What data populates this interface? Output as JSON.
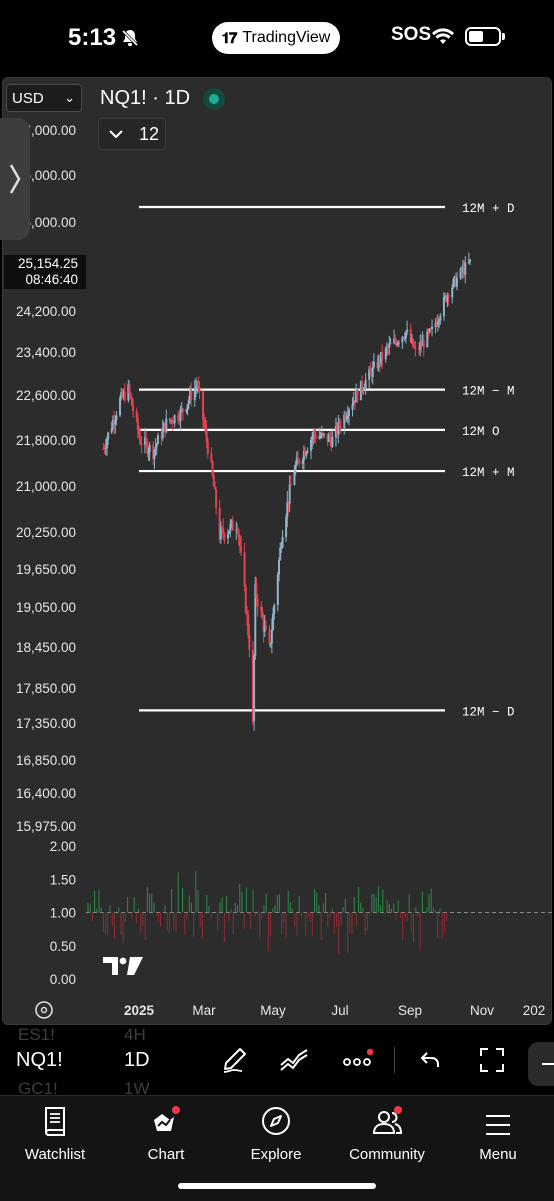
{
  "status_bar": {
    "time": "5:13",
    "app_pill": "TradingView",
    "carrier": "SOS"
  },
  "chart_header": {
    "currency": "USD",
    "symbol": "NQ1! · 1D",
    "indicators_count": "12"
  },
  "price_label": {
    "price": "25,154.25",
    "countdown": "08:46:40"
  },
  "levels": [
    {
      "label": "12M + D",
      "price": 26150
    },
    {
      "label": "12M − M",
      "price": 22700
    },
    {
      "label": "12M  O",
      "price": 21980
    },
    {
      "label": "12M + M",
      "price": 21260
    },
    {
      "label": "12M − D",
      "price": 17530
    }
  ],
  "chart_data": {
    "type": "candlestick",
    "symbol": "NQ1!",
    "interval": "1D",
    "y_tick_labels": [
      "27,000.00",
      "26,000.00",
      "26,000.00",
      "24,200.00",
      "23,400.00",
      "22,600.00",
      "21,800.00",
      "21,000.00",
      "20,250.00",
      "19,650.00",
      "19,050.00",
      "18,450.00",
      "17,850.00",
      "17,350.00",
      "16,850.00",
      "16,400.00",
      "15,975.00"
    ],
    "x_tick_labels": [
      "2025",
      "Mar",
      "May",
      "Jul",
      "Sep",
      "Nov",
      "202"
    ],
    "close_series_keypoints": [
      {
        "date": "2024-12-02",
        "close": 21650
      },
      {
        "date": "2024-12-16",
        "close": 22500
      },
      {
        "date": "2024-12-23",
        "close": 22700
      },
      {
        "date": "2025-01-02",
        "close": 21800
      },
      {
        "date": "2025-01-13",
        "close": 21600
      },
      {
        "date": "2025-01-24",
        "close": 22100
      },
      {
        "date": "2025-02-06",
        "close": 22300
      },
      {
        "date": "2025-02-19",
        "close": 22800
      },
      {
        "date": "2025-03-03",
        "close": 21300
      },
      {
        "date": "2025-03-10",
        "close": 20200
      },
      {
        "date": "2025-03-25",
        "close": 20400
      },
      {
        "date": "2025-04-04",
        "close": 18500
      },
      {
        "date": "2025-04-07",
        "close": 17300
      },
      {
        "date": "2025-04-09",
        "close": 19300
      },
      {
        "date": "2025-04-21",
        "close": 18400
      },
      {
        "date": "2025-05-02",
        "close": 20300
      },
      {
        "date": "2025-05-12",
        "close": 21300
      },
      {
        "date": "2025-05-28",
        "close": 21900
      },
      {
        "date": "2025-06-13",
        "close": 21800
      },
      {
        "date": "2025-06-27",
        "close": 22400
      },
      {
        "date": "2025-07-15",
        "close": 23000
      },
      {
        "date": "2025-07-31",
        "close": 23500
      },
      {
        "date": "2025-08-14",
        "close": 23800
      },
      {
        "date": "2025-08-22",
        "close": 23400
      },
      {
        "date": "2025-09-05",
        "close": 23800
      },
      {
        "date": "2025-09-19",
        "close": 24600
      },
      {
        "date": "2025-10-01",
        "close": 25000
      },
      {
        "date": "2025-10-07",
        "close": 25154.25
      }
    ],
    "indicator_pane": {
      "y_tick_labels": [
        "2.00",
        "1.50",
        "1.00",
        "0.50",
        "0.00"
      ],
      "baseline": 1.0,
      "range": [
        0,
        2
      ]
    }
  },
  "toolbar": {
    "ticker": "NQ1!",
    "timeframe": "1D",
    "ghost_left": [
      "ES1!",
      "GC1!"
    ],
    "ghost_right": [
      "4H",
      "1W"
    ]
  },
  "tabs": [
    {
      "label": "Watchlist",
      "icon": "book-icon"
    },
    {
      "label": "Chart",
      "icon": "chart-icon"
    },
    {
      "label": "Explore",
      "icon": "compass-icon"
    },
    {
      "label": "Community",
      "icon": "people-icon"
    },
    {
      "label": "Menu",
      "icon": "hamburger-icon"
    }
  ]
}
